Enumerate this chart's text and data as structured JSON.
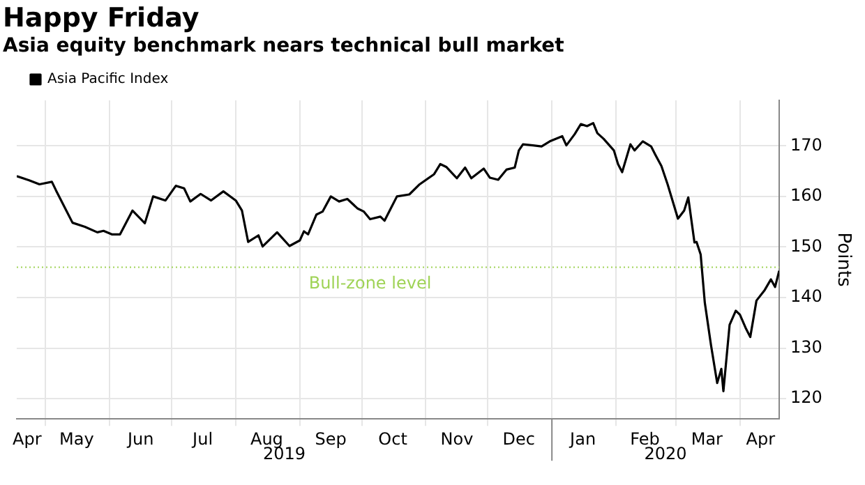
{
  "chart_data": {
    "type": "line",
    "title": "Happy Friday",
    "subtitle": "Asia equity benchmark nears technical bull market",
    "ylabel": "Points",
    "x": [
      "2019-04-17",
      "2019-04-23",
      "2019-04-28",
      "2019-05-04",
      "2019-05-06",
      "2019-05-11",
      "2019-05-14",
      "2019-05-20",
      "2019-05-26",
      "2019-05-29",
      "2019-06-02",
      "2019-06-06",
      "2019-06-12",
      "2019-06-18",
      "2019-06-22",
      "2019-06-28",
      "2019-07-03",
      "2019-07-07",
      "2019-07-10",
      "2019-07-15",
      "2019-07-20",
      "2019-07-26",
      "2019-08-01",
      "2019-08-04",
      "2019-08-07",
      "2019-08-12",
      "2019-08-14",
      "2019-08-21",
      "2019-08-27",
      "2019-09-01",
      "2019-09-03",
      "2019-09-05",
      "2019-09-09",
      "2019-09-12",
      "2019-09-16",
      "2019-09-20",
      "2019-09-24",
      "2019-09-29",
      "2019-10-02",
      "2019-10-05",
      "2019-10-10",
      "2019-10-12",
      "2019-10-15",
      "2019-10-18",
      "2019-10-24",
      "2019-10-29",
      "2019-11-05",
      "2019-11-08",
      "2019-11-11",
      "2019-11-16",
      "2019-11-20",
      "2019-11-23",
      "2019-11-29",
      "2019-12-02",
      "2019-12-06",
      "2019-12-10",
      "2019-12-14",
      "2019-12-16",
      "2019-12-18",
      "2019-12-27",
      "2019-12-31",
      "2020-01-06",
      "2020-01-08",
      "2020-01-12",
      "2020-01-15",
      "2020-01-18",
      "2020-01-21",
      "2020-01-23",
      "2020-01-26",
      "2020-01-31",
      "2020-02-02",
      "2020-02-04",
      "2020-02-08",
      "2020-02-10",
      "2020-02-14",
      "2020-02-18",
      "2020-02-20",
      "2020-02-23",
      "2020-02-26",
      "2020-03-02",
      "2020-03-05",
      "2020-03-07",
      "2020-03-10",
      "2020-03-11",
      "2020-03-13",
      "2020-03-15",
      "2020-03-18",
      "2020-03-21",
      "2020-03-23",
      "2020-03-24",
      "2020-03-27",
      "2020-03-30",
      "2020-04-01",
      "2020-04-04",
      "2020-04-06",
      "2020-04-09",
      "2020-04-13",
      "2020-04-16",
      "2020-04-18",
      "2020-04-20"
    ],
    "series": [
      {
        "name": "Asia Pacific Index",
        "color": "#000000",
        "values": [
          164.0,
          163.2,
          162.4,
          162.9,
          161.2,
          157.2,
          154.8,
          154.0,
          152.9,
          153.2,
          152.5,
          152.5,
          157.2,
          154.7,
          160.0,
          159.2,
          162.1,
          161.6,
          159.0,
          160.5,
          159.2,
          161.0,
          159.2,
          157.2,
          151.0,
          152.3,
          150.1,
          152.9,
          150.2,
          151.3,
          153.1,
          152.5,
          156.4,
          157.0,
          160.0,
          159.0,
          159.5,
          157.6,
          157.0,
          155.5,
          156.0,
          155.2,
          157.6,
          160.0,
          160.4,
          162.4,
          164.4,
          166.4,
          165.8,
          163.6,
          165.7,
          163.6,
          165.5,
          163.7,
          163.3,
          165.3,
          165.7,
          169.1,
          170.3,
          169.9,
          170.9,
          171.9,
          170.1,
          172.3,
          174.3,
          173.9,
          174.5,
          172.5,
          171.4,
          169.1,
          166.4,
          164.8,
          170.3,
          169.1,
          170.9,
          169.9,
          168.3,
          166.0,
          162.4,
          155.6,
          157.2,
          159.8,
          150.9,
          151.0,
          148.5,
          139.0,
          130.6,
          123.1,
          125.9,
          121.5,
          134.6,
          137.4,
          136.6,
          133.8,
          132.2,
          139.4,
          141.5,
          143.6,
          142.1,
          145.3
        ]
      }
    ],
    "xlim": [
      "2019-04-17",
      "2020-04-20"
    ],
    "xticks": [
      {
        "value": "2019-05-01",
        "label": null
      },
      {
        "value": "2019-06-01",
        "label": null
      },
      {
        "value": "2019-07-01",
        "label": null
      },
      {
        "value": "2019-08-01",
        "label": null
      },
      {
        "value": "2019-09-01",
        "label": null
      },
      {
        "value": "2019-10-01",
        "label": null
      },
      {
        "value": "2019-11-01",
        "label": null
      },
      {
        "value": "2019-12-01",
        "label": null
      },
      {
        "value": "2020-01-01",
        "label": null
      },
      {
        "value": "2020-02-01",
        "label": null
      },
      {
        "value": "2020-03-01",
        "label": null
      },
      {
        "value": "2020-04-01",
        "label": null
      },
      {
        "value": "2019-04-22",
        "label": "Apr"
      },
      {
        "value": "2019-05-16",
        "label": "May"
      },
      {
        "value": "2019-06-16",
        "label": "Jun"
      },
      {
        "value": "2019-07-16",
        "label": "Jul"
      },
      {
        "value": "2019-08-16",
        "label": "Aug"
      },
      {
        "value": "2019-09-16",
        "label": "Sep"
      },
      {
        "value": "2019-10-16",
        "label": "Oct"
      },
      {
        "value": "2019-11-16",
        "label": "Nov"
      },
      {
        "value": "2019-12-16",
        "label": "Dec"
      },
      {
        "value": "2020-01-16",
        "label": "Jan"
      },
      {
        "value": "2020-02-15",
        "label": "Feb"
      },
      {
        "value": "2020-03-16",
        "label": "Mar"
      },
      {
        "value": "2020-04-11",
        "label": "Apr"
      }
    ],
    "ylim": [
      116,
      179
    ],
    "yticks": [
      120,
      130,
      140,
      150,
      160,
      170
    ],
    "ref_lines": [
      {
        "axis": "y",
        "value": 146,
        "label": "Bull-zone level",
        "color": "#9fd356",
        "line_style": "dotted"
      }
    ],
    "annotations": [
      "2019",
      "2020"
    ],
    "grid": true,
    "legend": "top left",
    "line_style": "solid",
    "marker": "none"
  }
}
